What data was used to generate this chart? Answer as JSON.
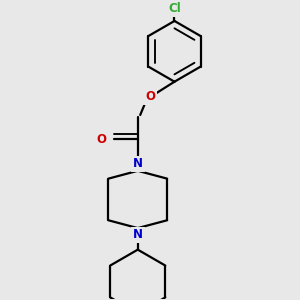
{
  "background_color": "#e8e8e8",
  "line_color": "#000000",
  "N_color": "#0000cc",
  "O_color": "#cc0000",
  "Cl_color": "#33aa33",
  "line_width": 1.6,
  "figsize": [
    3.0,
    3.0
  ],
  "dpi": 100,
  "xlim": [
    -1.8,
    1.8
  ],
  "ylim": [
    -3.2,
    2.8
  ]
}
